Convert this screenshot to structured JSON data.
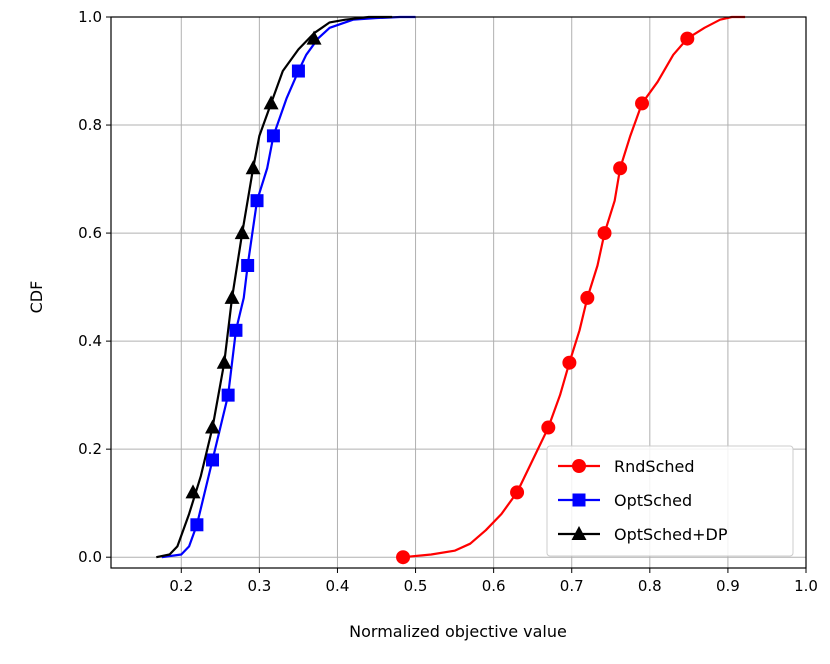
{
  "chart_data": {
    "type": "line",
    "xlabel": "Normalized objective value",
    "ylabel": "CDF",
    "xlim": [
      0.11,
      1.0
    ],
    "ylim": [
      -0.02,
      1.0
    ],
    "xticks": [
      0.2,
      0.3,
      0.4,
      0.5,
      0.6,
      0.7,
      0.8,
      0.9,
      1.0
    ],
    "xtick_labels": [
      "0.2",
      "0.3",
      "0.4",
      "0.5",
      "0.6",
      "0.7",
      "0.8",
      "0.9",
      "1.0"
    ],
    "yticks": [
      0.0,
      0.2,
      0.4,
      0.6,
      0.8,
      1.0
    ],
    "ytick_labels": [
      "0.0",
      "0.2",
      "0.4",
      "0.6",
      "0.8",
      "1.0"
    ],
    "grid": true,
    "legend_position": "lower-right",
    "series": [
      {
        "name": "RndSched",
        "color": "#ff0000",
        "marker": "circle",
        "x": [
          0.484,
          0.52,
          0.55,
          0.57,
          0.59,
          0.61,
          0.63,
          0.65,
          0.67,
          0.685,
          0.697,
          0.71,
          0.72,
          0.733,
          0.742,
          0.755,
          0.762,
          0.775,
          0.79,
          0.81,
          0.83,
          0.848,
          0.87,
          0.89,
          0.905,
          0.922
        ],
        "y": [
          0.0,
          0.005,
          0.012,
          0.025,
          0.05,
          0.08,
          0.12,
          0.18,
          0.24,
          0.3,
          0.36,
          0.42,
          0.48,
          0.54,
          0.6,
          0.66,
          0.72,
          0.78,
          0.84,
          0.88,
          0.93,
          0.96,
          0.98,
          0.995,
          1.0,
          1.0
        ],
        "markers_x": [
          0.484,
          0.63,
          0.67,
          0.697,
          0.72,
          0.742,
          0.762,
          0.79,
          0.848
        ],
        "markers_y": [
          0.0,
          0.12,
          0.24,
          0.36,
          0.48,
          0.6,
          0.72,
          0.84,
          0.96
        ]
      },
      {
        "name": "OptSched",
        "color": "#0000ff",
        "marker": "square",
        "x": [
          0.175,
          0.2,
          0.21,
          0.22,
          0.23,
          0.24,
          0.25,
          0.26,
          0.27,
          0.28,
          0.285,
          0.297,
          0.31,
          0.318,
          0.335,
          0.35,
          0.36,
          0.375,
          0.39,
          0.42,
          0.45,
          0.48,
          0.5
        ],
        "y": [
          0.0,
          0.005,
          0.02,
          0.06,
          0.12,
          0.18,
          0.24,
          0.3,
          0.42,
          0.48,
          0.54,
          0.66,
          0.72,
          0.78,
          0.85,
          0.9,
          0.93,
          0.96,
          0.98,
          0.995,
          0.998,
          1.0,
          1.0
        ],
        "markers_x": [
          0.22,
          0.24,
          0.26,
          0.27,
          0.285,
          0.297,
          0.318,
          0.35
        ],
        "markers_y": [
          0.06,
          0.18,
          0.3,
          0.42,
          0.54,
          0.66,
          0.78,
          0.9
        ]
      },
      {
        "name": "OptSched+DP",
        "color": "#000000",
        "marker": "triangle",
        "x": [
          0.168,
          0.185,
          0.195,
          0.2,
          0.21,
          0.225,
          0.24,
          0.255,
          0.265,
          0.278,
          0.292,
          0.3,
          0.315,
          0.33,
          0.35,
          0.37,
          0.38,
          0.39,
          0.41,
          0.44,
          0.47
        ],
        "y": [
          0.0,
          0.005,
          0.02,
          0.04,
          0.08,
          0.15,
          0.24,
          0.36,
          0.48,
          0.6,
          0.72,
          0.78,
          0.84,
          0.9,
          0.94,
          0.97,
          0.98,
          0.99,
          0.995,
          1.0,
          1.0
        ],
        "markers_x": [
          0.215,
          0.24,
          0.255,
          0.265,
          0.278,
          0.292,
          0.315,
          0.37
        ],
        "markers_y": [
          0.12,
          0.24,
          0.36,
          0.48,
          0.6,
          0.72,
          0.84,
          0.96
        ]
      }
    ]
  }
}
